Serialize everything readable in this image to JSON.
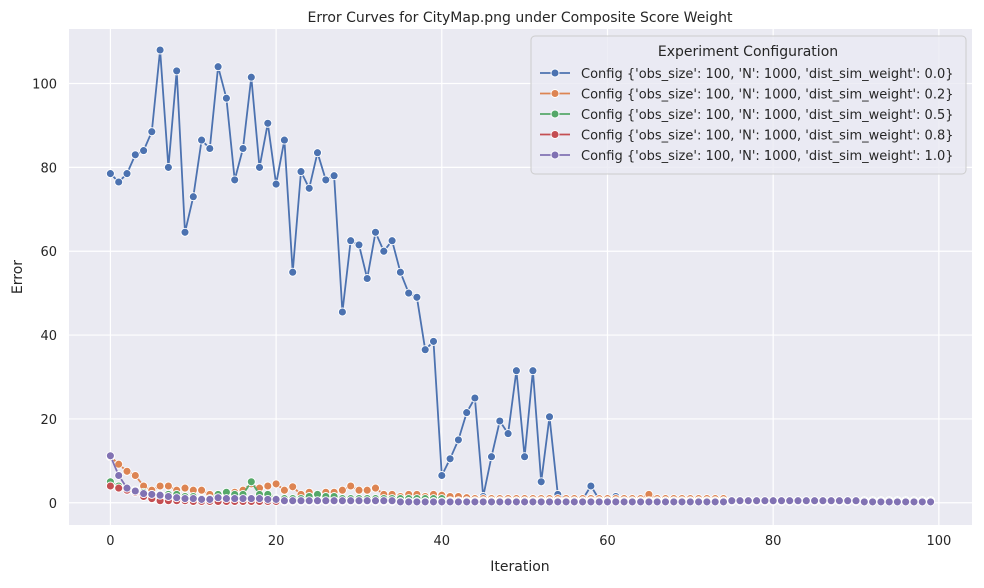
{
  "chart_data": {
    "type": "line",
    "title": "Error Curves for CityMap.png under Composite Score Weight",
    "xlabel": "Iteration",
    "ylabel": "Error",
    "xlim": [
      -5,
      104
    ],
    "ylim": [
      -5.3,
      113
    ],
    "xticks": [
      0,
      20,
      40,
      60,
      80,
      100
    ],
    "yticks": [
      0,
      20,
      40,
      60,
      80,
      100
    ],
    "grid": true,
    "legend": {
      "title": "Experiment Configuration",
      "placement": "top-right"
    },
    "series": [
      {
        "name": "Config {'obs_size': 100, 'N': 1000, 'dist_sim_weight': 0.0}",
        "color": "#4c72b0",
        "x": [
          0,
          1,
          2,
          3,
          4,
          5,
          6,
          7,
          8,
          9,
          10,
          11,
          12,
          13,
          14,
          15,
          16,
          17,
          18,
          19,
          20,
          21,
          22,
          23,
          24,
          25,
          26,
          27,
          28,
          29,
          30,
          31,
          32,
          33,
          34,
          35,
          36,
          37,
          38,
          39,
          40,
          41,
          42,
          43,
          44,
          45,
          46,
          47,
          48,
          49,
          50,
          51,
          52,
          53,
          54,
          55,
          56,
          57,
          58,
          59,
          60,
          61,
          62,
          63,
          64,
          65,
          66,
          67,
          68,
          69,
          70,
          71,
          72,
          73,
          74,
          75,
          76,
          77,
          78,
          79,
          80,
          81,
          82,
          83,
          84,
          85,
          86,
          87,
          88,
          89,
          90,
          91,
          92,
          93,
          94,
          95,
          96,
          97,
          98,
          99
        ],
        "values": [
          78.5,
          76.5,
          78.5,
          83,
          84,
          88.5,
          108,
          80,
          103,
          64.5,
          73,
          86.5,
          84.5,
          104,
          96.5,
          77,
          84.5,
          101.5,
          80,
          90.5,
          76,
          86.5,
          55,
          79,
          75,
          83.5,
          77,
          78,
          45.5,
          62.5,
          61.5,
          53.5,
          64.5,
          60,
          62.5,
          55,
          50,
          49,
          36.5,
          38.5,
          6.5,
          10.5,
          15,
          21.5,
          25,
          1.5,
          11,
          19.5,
          16.5,
          31.5,
          11,
          31.5,
          5,
          20.5,
          2,
          0.8,
          0.8,
          0.8,
          4,
          0.8,
          0.8,
          1.5,
          0.5,
          0.5,
          0.5,
          0.5,
          0.5,
          0.5,
          0.5,
          0.5,
          0.5,
          0.5,
          0.5,
          0.5,
          0.5,
          0.5,
          0.5,
          0.5,
          0.5,
          0.5,
          0.5,
          0.5,
          0.5,
          0.5,
          0.5,
          0.5,
          0.5,
          0.5,
          0.5,
          0.5,
          0.5,
          0.5,
          0.5,
          0.5,
          0.5,
          0.5,
          0.5,
          0.5,
          0.5,
          0.5
        ]
      },
      {
        "name": "Config {'obs_size': 100, 'N': 1000, 'dist_sim_weight': 0.2}",
        "color": "#dd8452",
        "x": [
          0,
          1,
          2,
          3,
          4,
          5,
          6,
          7,
          8,
          9,
          10,
          11,
          12,
          13,
          14,
          15,
          16,
          17,
          18,
          19,
          20,
          21,
          22,
          23,
          24,
          25,
          26,
          27,
          28,
          29,
          30,
          31,
          32,
          33,
          34,
          35,
          36,
          37,
          38,
          39,
          40,
          41,
          42,
          43,
          44,
          45,
          46,
          47,
          48,
          49,
          50,
          51,
          52,
          53,
          54,
          55,
          56,
          57,
          58,
          59,
          60,
          61,
          62,
          63,
          64,
          65,
          66,
          67,
          68,
          69,
          70,
          71,
          72,
          73,
          74,
          75,
          76,
          77,
          78,
          79,
          80,
          81,
          82,
          83,
          84,
          85,
          86,
          87,
          88,
          89,
          90,
          91,
          92,
          93,
          94,
          95,
          96,
          97,
          98,
          99
        ],
        "values": [
          11,
          9.2,
          7.5,
          6.5,
          4,
          3,
          4,
          4,
          3,
          3.5,
          3,
          3,
          2,
          2,
          1.5,
          2.5,
          3,
          4.5,
          3.5,
          4,
          4.5,
          3,
          3.8,
          2,
          2.5,
          2,
          2.5,
          2.5,
          3,
          4,
          3,
          3,
          3.5,
          2,
          2,
          1.5,
          2,
          2,
          1.5,
          2,
          1.8,
          1.5,
          1.5,
          1.2,
          1,
          1,
          1,
          1,
          1,
          1,
          1,
          1,
          1,
          1,
          1,
          1,
          1,
          1,
          1,
          1,
          1,
          1,
          1,
          1,
          1,
          2,
          1,
          1,
          1,
          1,
          1,
          1,
          1,
          1,
          1,
          0.5,
          0.5,
          0.5,
          0.5,
          0.5,
          0.5,
          0.5,
          0.5,
          0.5,
          0.5,
          0.5,
          0.5,
          0.5,
          0.5,
          0.5,
          0.5,
          0.5,
          0.5,
          0.5,
          0.5,
          0.5,
          0.5,
          0.5,
          0.5,
          0.5
        ]
      },
      {
        "name": "Config {'obs_size': 100, 'N': 1000, 'dist_sim_weight': 0.5}",
        "color": "#55a868",
        "x": [
          0,
          1,
          2,
          3,
          4,
          5,
          6,
          7,
          8,
          9,
          10,
          11,
          12,
          13,
          14,
          15,
          16,
          17,
          18,
          19,
          20,
          21,
          22,
          23,
          24,
          25,
          26,
          27,
          28,
          29,
          30,
          31,
          32,
          33,
          34,
          35,
          36,
          37,
          38,
          39,
          40,
          41,
          42,
          43,
          44,
          45,
          46,
          47,
          48,
          49,
          50,
          51,
          52,
          53,
          54,
          55,
          56,
          57,
          58,
          59,
          60,
          61,
          62,
          63,
          64,
          65,
          66,
          67,
          68,
          69,
          70,
          71,
          72,
          73,
          74,
          75,
          76,
          77,
          78,
          79,
          80,
          81,
          82,
          83,
          84,
          85,
          86,
          87,
          88,
          89,
          90,
          91,
          92,
          93,
          94,
          95,
          96,
          97,
          98,
          99
        ],
        "values": [
          5,
          4,
          3,
          3,
          2.5,
          2,
          2,
          2,
          2,
          1.5,
          1.5,
          1,
          1,
          2,
          2.5,
          2,
          2,
          5,
          2,
          2,
          1,
          1,
          1,
          1,
          1.5,
          2,
          1.5,
          1.5,
          1,
          1,
          1,
          1,
          1,
          1,
          1,
          1,
          1,
          1,
          1,
          1,
          1,
          0.5,
          0.5,
          0.5,
          0.5,
          0.5,
          0.5,
          0.5,
          0.5,
          0.5,
          0.5,
          0.5,
          0.5,
          0.5,
          0.5,
          0.5,
          0.5,
          0.5,
          0.5,
          0.5,
          0.5,
          0.5,
          0.5,
          0.5,
          0.5,
          0.5,
          0.5,
          0.5,
          0.5,
          0.5,
          0.5,
          0.5,
          0.5,
          0.5,
          0.5,
          0.5,
          0.5,
          0.5,
          0.5,
          0.5,
          0.5,
          0.5,
          0.5,
          0.5,
          0.5,
          0.5,
          0.5,
          0.5,
          0.5,
          0.5,
          0.5,
          0.5,
          0.5,
          0.5,
          0.5,
          0.5,
          0.5,
          0.5,
          0.5,
          0.5
        ]
      },
      {
        "name": "Config {'obs_size': 100, 'N': 1000, 'dist_sim_weight': 0.8}",
        "color": "#c44e52",
        "x": [
          0,
          1,
          2,
          3,
          4,
          5,
          6,
          7,
          8,
          9,
          10,
          11,
          12,
          13,
          14,
          15,
          16,
          17,
          18,
          19,
          20,
          21,
          22,
          23,
          24,
          25,
          26,
          27,
          28,
          29,
          30,
          31,
          32,
          33,
          34,
          35,
          36,
          37,
          38,
          39,
          40,
          41,
          42,
          43,
          44,
          45,
          46,
          47,
          48,
          49,
          50,
          51,
          52,
          53,
          54,
          55,
          56,
          57,
          58,
          59,
          60,
          61,
          62,
          63,
          64,
          65,
          66,
          67,
          68,
          69,
          70,
          71,
          72,
          73,
          74,
          75,
          76,
          77,
          78,
          79,
          80,
          81,
          82,
          83,
          84,
          85,
          86,
          87,
          88,
          89,
          90,
          91,
          92,
          93,
          94,
          95,
          96,
          97,
          98,
          99
        ],
        "values": [
          4,
          3.5,
          3,
          2.5,
          1.5,
          1,
          0.5,
          0.5,
          0.5,
          0.5,
          0.3,
          0.3,
          0.3,
          0.3,
          0.3,
          0.3,
          0.3,
          0.3,
          0.3,
          0.3,
          0.3,
          0.3,
          0.3,
          0.3,
          0.3,
          0.3,
          0.3,
          0.3,
          0.3,
          0.3,
          0.3,
          0.3,
          0.3,
          0.3,
          0.3,
          0.3,
          0.3,
          0.3,
          0.3,
          0.3,
          0.3,
          0.3,
          0.3,
          0.3,
          0.3,
          0.3,
          0.3,
          0.3,
          0.3,
          0.3,
          0.3,
          0.3,
          0.3,
          0.3,
          0.3,
          0.3,
          0.3,
          0.3,
          0.3,
          0.3,
          0.3,
          0.3,
          0.3,
          0.3,
          0.3,
          0.3,
          0.3,
          0.3,
          0.3,
          0.3,
          0.3,
          0.3,
          0.3,
          0.3,
          0.3,
          0.3,
          0.3,
          0.3,
          0.3,
          0.3,
          0.3,
          0.3,
          0.3,
          0.3,
          0.3,
          0.3,
          0.3,
          0.3,
          0.3,
          0.3,
          0.3,
          0.3,
          0.3,
          0.3,
          0.3,
          0.3,
          0.3,
          0.3,
          0.3,
          0.3
        ]
      },
      {
        "name": "Config {'obs_size': 100, 'N': 1000, 'dist_sim_weight': 1.0}",
        "color": "#8172b3",
        "x": [
          0,
          1,
          2,
          3,
          4,
          5,
          6,
          7,
          8,
          9,
          10,
          11,
          12,
          13,
          14,
          15,
          16,
          17,
          18,
          19,
          20,
          21,
          22,
          23,
          24,
          25,
          26,
          27,
          28,
          29,
          30,
          31,
          32,
          33,
          34,
          35,
          36,
          37,
          38,
          39,
          40,
          41,
          42,
          43,
          44,
          45,
          46,
          47,
          48,
          49,
          50,
          51,
          52,
          53,
          54,
          55,
          56,
          57,
          58,
          59,
          60,
          61,
          62,
          63,
          64,
          65,
          66,
          67,
          68,
          69,
          70,
          71,
          72,
          73,
          74,
          75,
          76,
          77,
          78,
          79,
          80,
          81,
          82,
          83,
          84,
          85,
          86,
          87,
          88,
          89,
          90,
          91,
          92,
          93,
          94,
          95,
          96,
          97,
          98,
          99
        ],
        "values": [
          11.2,
          6.5,
          3.5,
          2.8,
          2.2,
          2,
          1.8,
          1.5,
          1.2,
          1,
          1,
          0.8,
          0.8,
          1.2,
          1,
          1,
          1,
          1,
          1,
          0.8,
          0.8,
          0.5,
          0.5,
          0.5,
          0.5,
          0.5,
          0.5,
          0.5,
          0.5,
          0.5,
          0.5,
          0.5,
          0.5,
          0.5,
          0.5,
          0.2,
          0.2,
          0.2,
          0.2,
          0.2,
          0.2,
          0.2,
          0.2,
          0.2,
          0.2,
          0.2,
          0.2,
          0.2,
          0.2,
          0.2,
          0.2,
          0.2,
          0.2,
          0.2,
          0.2,
          0.2,
          0.2,
          0.2,
          0.2,
          0.2,
          0.2,
          0.2,
          0.2,
          0.2,
          0.2,
          0.2,
          0.2,
          0.2,
          0.2,
          0.2,
          0.2,
          0.2,
          0.2,
          0.2,
          0.2,
          0.5,
          0.5,
          0.5,
          0.5,
          0.5,
          0.5,
          0.5,
          0.5,
          0.5,
          0.5,
          0.5,
          0.5,
          0.5,
          0.5,
          0.5,
          0.5,
          0.2,
          0.2,
          0.2,
          0.2,
          0.2,
          0.2,
          0.2,
          0.2,
          0.2
        ]
      }
    ]
  }
}
